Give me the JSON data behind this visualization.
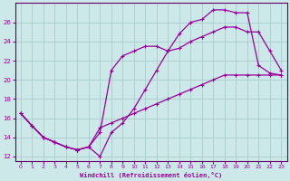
{
  "xlabel": "Windchill (Refroidissement éolien,°C)",
  "bg_color": "#cce8e8",
  "grid_color": "#aacccc",
  "line_color": "#990099",
  "spine_color": "#660066",
  "xlim": [
    -0.5,
    23.5
  ],
  "ylim": [
    11.5,
    28.0
  ],
  "yticks": [
    12,
    14,
    16,
    18,
    20,
    22,
    24,
    26
  ],
  "xticks": [
    0,
    1,
    2,
    3,
    4,
    5,
    6,
    7,
    8,
    9,
    10,
    11,
    12,
    13,
    14,
    15,
    16,
    17,
    18,
    19,
    20,
    21,
    22,
    23
  ],
  "line1_x": [
    0,
    1,
    2,
    3,
    4,
    5,
    6,
    7,
    8,
    9,
    10,
    11,
    12,
    13,
    14,
    15,
    16,
    17,
    18,
    19,
    20,
    21,
    22,
    23
  ],
  "line1_y": [
    16.5,
    15.2,
    14.0,
    13.5,
    13.0,
    12.7,
    13.0,
    12.0,
    14.5,
    15.5,
    17.0,
    19.0,
    21.0,
    23.0,
    24.8,
    26.0,
    26.3,
    27.3,
    27.3,
    27.0,
    27.0,
    21.5,
    20.7,
    20.5
  ],
  "line2_x": [
    0,
    1,
    2,
    3,
    4,
    5,
    6,
    7,
    8,
    9,
    10,
    11,
    12,
    13,
    14,
    15,
    16,
    17,
    18,
    19,
    20,
    21,
    22,
    23
  ],
  "line2_y": [
    16.5,
    15.2,
    14.0,
    13.5,
    13.0,
    12.7,
    13.0,
    14.5,
    21.0,
    22.5,
    23.0,
    23.5,
    23.5,
    23.0,
    23.3,
    24.0,
    24.5,
    25.0,
    25.5,
    25.5,
    25.0,
    25.0,
    23.0,
    21.0
  ],
  "line3_x": [
    0,
    1,
    2,
    3,
    4,
    5,
    6,
    7,
    8,
    9,
    10,
    11,
    12,
    13,
    14,
    15,
    16,
    17,
    18,
    19,
    20,
    21,
    22,
    23
  ],
  "line3_y": [
    16.5,
    15.2,
    14.0,
    13.5,
    13.0,
    12.7,
    13.0,
    15.0,
    15.5,
    16.0,
    16.5,
    17.0,
    17.5,
    18.0,
    18.5,
    19.0,
    19.5,
    20.0,
    20.5,
    20.5,
    20.5,
    20.5,
    20.5,
    20.5
  ]
}
